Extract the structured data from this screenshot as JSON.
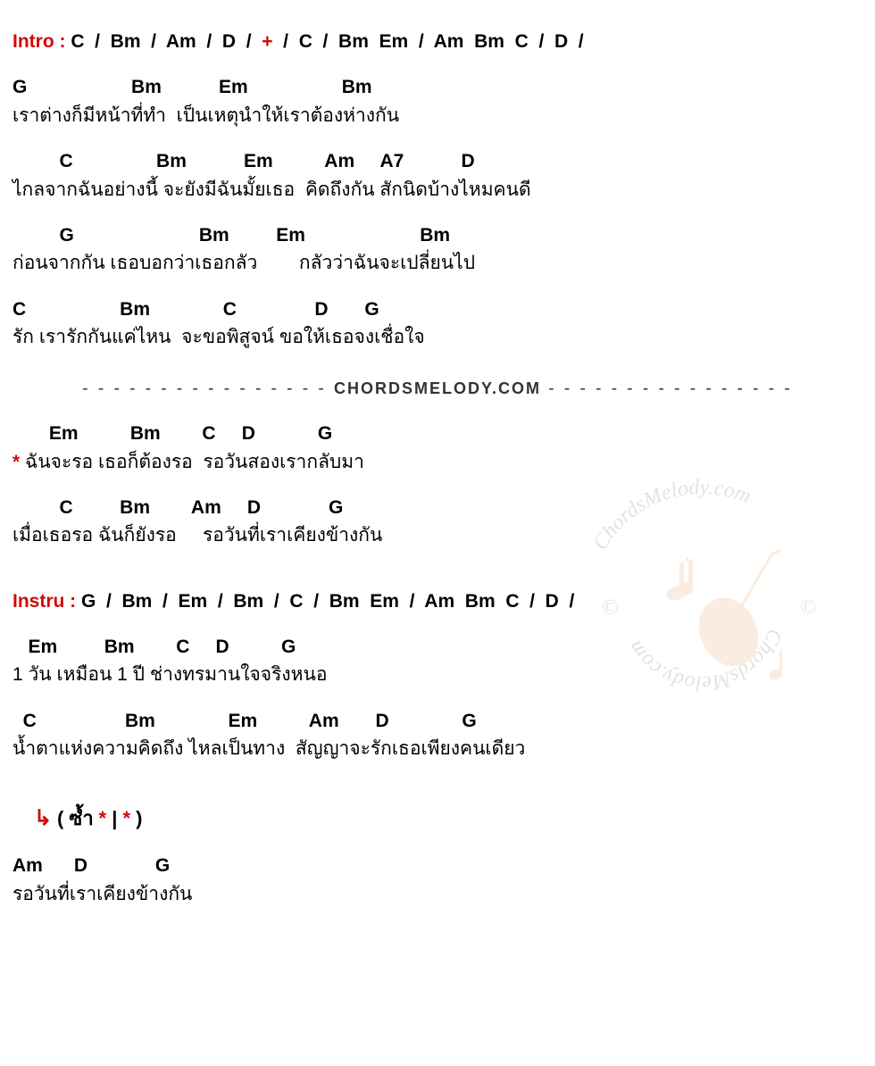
{
  "intro": {
    "label": "Intro :",
    "sequence": [
      {
        "text": "C",
        "red": false
      },
      {
        "text": "/",
        "red": false
      },
      {
        "text": "Bm",
        "red": false
      },
      {
        "text": "/",
        "red": false
      },
      {
        "text": "Am",
        "red": false
      },
      {
        "text": "/",
        "red": false
      },
      {
        "text": "D",
        "red": false
      },
      {
        "text": "/",
        "red": false
      },
      {
        "text": "+",
        "red": true
      },
      {
        "text": "/",
        "red": false
      },
      {
        "text": "C",
        "red": false
      },
      {
        "text": "/",
        "red": false
      },
      {
        "text": "Bm",
        "red": false
      },
      {
        "text": "Em",
        "red": false
      },
      {
        "text": "/",
        "red": false
      },
      {
        "text": "Am",
        "red": false
      },
      {
        "text": "Bm",
        "red": false
      },
      {
        "text": "C",
        "red": false
      },
      {
        "text": "/",
        "red": false
      },
      {
        "text": "D",
        "red": false
      },
      {
        "text": "/",
        "red": false
      }
    ]
  },
  "verse1": {
    "chords_a": "G                    Bm           Em                  Bm",
    "lyrics_a": "เราต่างก็มีหน้าที่ทำ  เป็นเหตุนำให้เราต้องห่างกัน",
    "chords_b": "         C                Bm           Em          Am     A7           D",
    "lyrics_b": "ไกลจากฉันอย่างนี้ จะยังมีฉันมั้ยเธอ  คิดถึงกัน สักนิดบ้างไหมคนดี",
    "chords_c": "         G                        Bm         Em                      Bm",
    "lyrics_c": "ก่อนจากกัน เธอบอกว่าเธอกลัว        กลัวว่าฉันจะเปลี่ยนไป",
    "chords_d": "C                  Bm              C               D       G",
    "lyrics_d": "รัก เรารักกันแค่ไหน  จะขอพิสูจน์ ขอให้เธอจงเชื่อใจ"
  },
  "divider": {
    "dashes": "- - - - - - - - - - - - - - - -",
    "text": "CHORDSMELODY.COM"
  },
  "chorus": {
    "chords_a": "       Em          Bm        C     D            G",
    "asterisk": "*",
    "lyrics_a": " ฉันจะรอ เธอก็ต้องรอ  รอวันสองเรากลับมา",
    "chords_b": "         C         Bm        Am     D             G",
    "lyrics_b": "เมื่อเธอรอ ฉันก็ยังรอ     รอวันที่เราเคียงข้างกัน"
  },
  "instru": {
    "label": "Instru :",
    "sequence": [
      {
        "text": "G",
        "red": false
      },
      {
        "text": "/",
        "red": false
      },
      {
        "text": "Bm",
        "red": false
      },
      {
        "text": "/",
        "red": false
      },
      {
        "text": "Em",
        "red": false
      },
      {
        "text": "/",
        "red": false
      },
      {
        "text": "Bm",
        "red": false
      },
      {
        "text": "/",
        "red": false
      },
      {
        "text": "C",
        "red": false
      },
      {
        "text": "/",
        "red": false
      },
      {
        "text": "Bm",
        "red": false
      },
      {
        "text": "Em",
        "red": false
      },
      {
        "text": "/",
        "red": false
      },
      {
        "text": "Am",
        "red": false
      },
      {
        "text": "Bm",
        "red": false
      },
      {
        "text": "C",
        "red": false
      },
      {
        "text": "/",
        "red": false
      },
      {
        "text": "D",
        "red": false
      },
      {
        "text": "/",
        "red": false
      }
    ]
  },
  "verse2": {
    "chords_a": "   Em         Bm        C     D          G",
    "lyrics_a": "1 วัน เหมือน 1 ปี ช่างทรมานใจจริงหนอ",
    "chords_b": "  C                 Bm              Em          Am       D              G",
    "lyrics_b": "น้ำตาแห่งความคิดถึง ไหลเป็นทาง  สัญญาจะรักเธอเพียงคนเดียว"
  },
  "repeat": {
    "arrow": "↳",
    "open": "( ",
    "saam": "ซ้ำ",
    "ast1": "*",
    "pipe": " | ",
    "ast2": "*",
    "close": " )"
  },
  "outro": {
    "chords": "Am      D             G",
    "lyrics": "รอวันที่เราเคียงข้างกัน"
  },
  "watermark": {
    "text1": "ChordsMelody.com",
    "text2": "ChordsMelody.com",
    "copy": "©"
  },
  "colors": {
    "accent": "#d30909",
    "text": "#000000",
    "bg": "#ffffff",
    "wm_gray": "#888888",
    "wm_orange": "#e89a5a"
  }
}
